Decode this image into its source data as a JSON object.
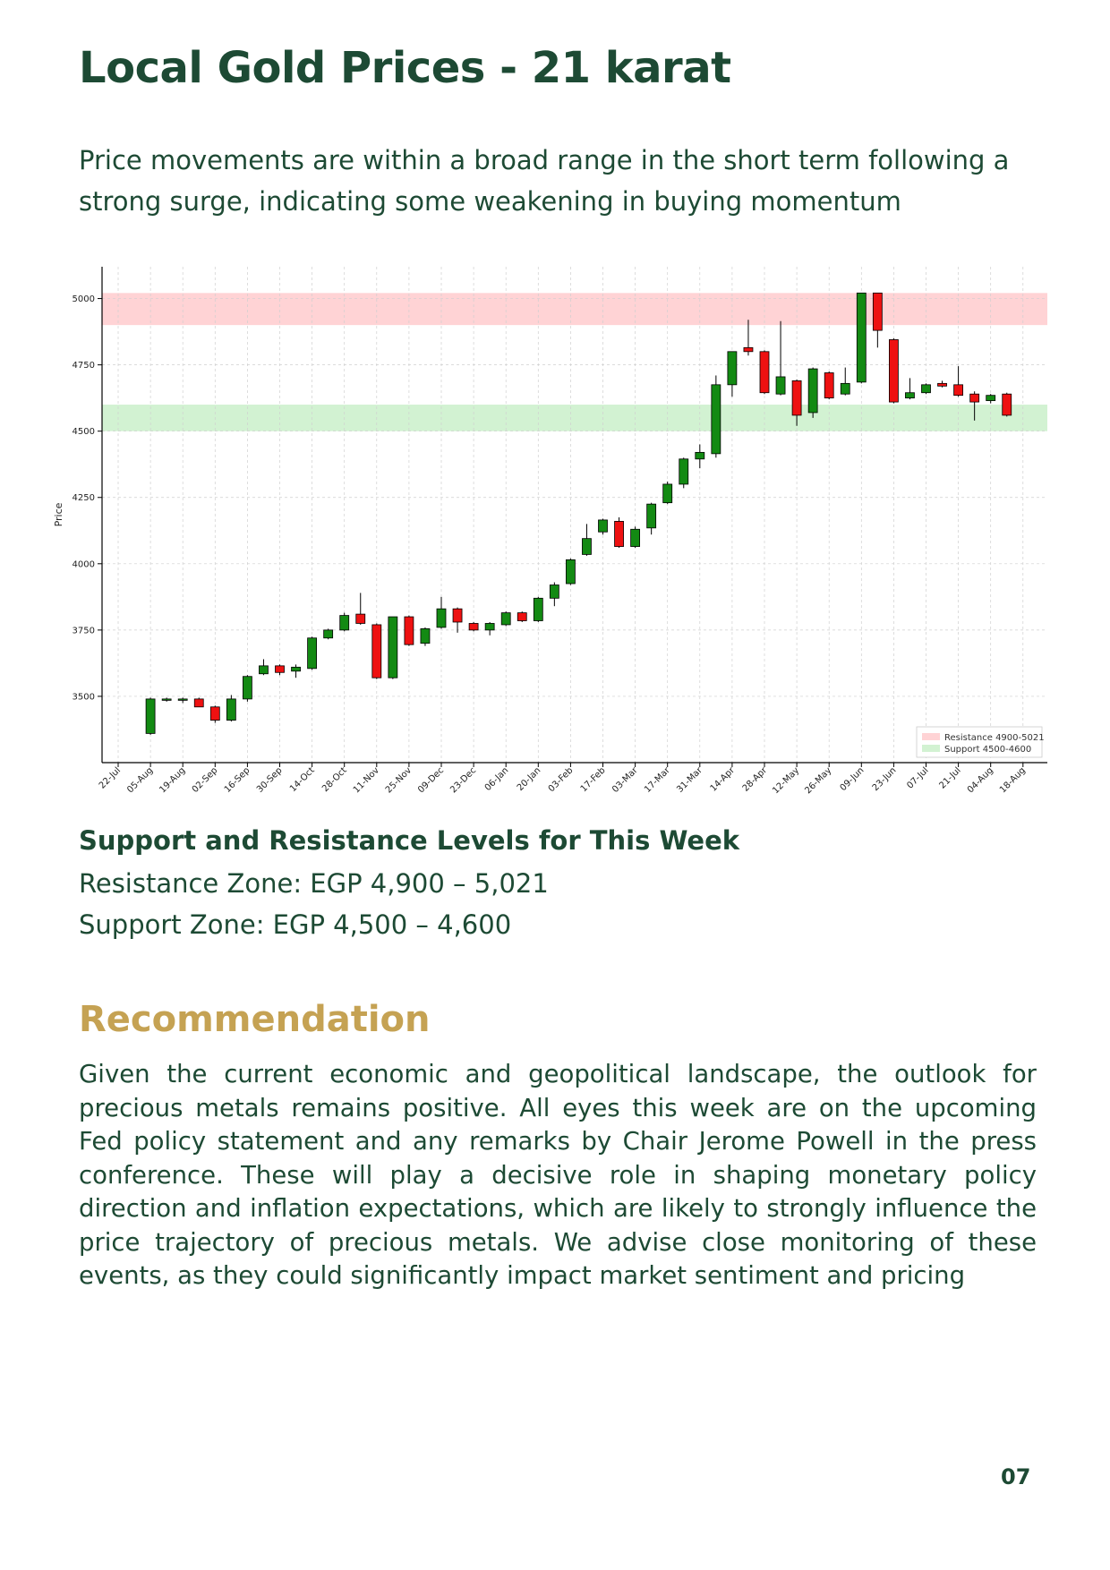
{
  "page": {
    "title": "Local Gold Prices - 21 karat",
    "subtitle": "Price movements are within a broad range in the short term following a strong surge, indicating some weakening in buying momentum",
    "page_number": "07"
  },
  "levels": {
    "heading": "Support and Resistance Levels for This Week",
    "resistance_text": "Resistance Zone: EGP 4,900 – 5,021",
    "support_text": "Support Zone: EGP 4,500 – 4,600"
  },
  "recommendation": {
    "heading": "Recommendation",
    "body": "Given the current economic and geopolitical landscape, the outlook for precious metals remains positive. All eyes this week are on the upcoming Fed policy statement and any remarks by Chair Jerome Powell in the press conference. These will play a decisive role in shaping monetary policy direction and inflation expectations, which are likely to strongly influence the price trajectory of precious metals. We advise close monitoring of these events, as they could significantly impact market sentiment and pricing"
  },
  "colors": {
    "title": "#1d4a34",
    "accent_gold": "#c5a253",
    "up_candle": "#138a13",
    "down_candle": "#ee1111",
    "resistance_band": "#ffd3d5",
    "support_band": "#d2f2d2"
  },
  "chart_data": {
    "type": "candlestick",
    "ylabel": "Price",
    "ylim": [
      3250,
      5120
    ],
    "yticks": [
      3500,
      3750,
      4000,
      4250,
      4500,
      4750,
      5000
    ],
    "xtick_labels": [
      "22-Jul",
      "05-Aug",
      "19-Aug",
      "02-Sep",
      "16-Sep",
      "30-Sep",
      "14-Oct",
      "28-Oct",
      "11-Nov",
      "25-Nov",
      "09-Dec",
      "23-Dec",
      "06-Jan",
      "20-Jan",
      "03-Feb",
      "17-Feb",
      "03-Mar",
      "17-Mar",
      "31-Mar",
      "14-Apr",
      "28-Apr",
      "12-May",
      "26-May",
      "09-Jun",
      "23-Jun",
      "07-Jul",
      "21-Jul",
      "04-Aug",
      "18-Aug"
    ],
    "grid": true,
    "legend_position": "bottom-right",
    "bands": [
      {
        "name": "Resistance 4900-5021",
        "low": 4900,
        "high": 5021
      },
      {
        "name": "Support 4500-4600",
        "low": 4500,
        "high": 4600
      }
    ],
    "candles": [
      {
        "t": 2,
        "o": 3360,
        "h": 3495,
        "l": 3355,
        "c": 3490
      },
      {
        "t": 3,
        "o": 3485,
        "h": 3495,
        "l": 3480,
        "c": 3490
      },
      {
        "t": 4,
        "o": 3485,
        "h": 3495,
        "l": 3475,
        "c": 3490
      },
      {
        "t": 5,
        "o": 3490,
        "h": 3495,
        "l": 3460,
        "c": 3460
      },
      {
        "t": 6,
        "o": 3460,
        "h": 3465,
        "l": 3400,
        "c": 3410
      },
      {
        "t": 7,
        "o": 3410,
        "h": 3505,
        "l": 3405,
        "c": 3490
      },
      {
        "t": 8,
        "o": 3490,
        "h": 3580,
        "l": 3480,
        "c": 3575
      },
      {
        "t": 9,
        "o": 3585,
        "h": 3640,
        "l": 3580,
        "c": 3615
      },
      {
        "t": 10,
        "o": 3615,
        "h": 3620,
        "l": 3580,
        "c": 3590
      },
      {
        "t": 11,
        "o": 3595,
        "h": 3620,
        "l": 3570,
        "c": 3610
      },
      {
        "t": 12,
        "o": 3605,
        "h": 3725,
        "l": 3600,
        "c": 3720
      },
      {
        "t": 13,
        "o": 3720,
        "h": 3755,
        "l": 3715,
        "c": 3750
      },
      {
        "t": 14,
        "o": 3750,
        "h": 3815,
        "l": 3745,
        "c": 3805
      },
      {
        "t": 15,
        "o": 3810,
        "h": 3890,
        "l": 3770,
        "c": 3775
      },
      {
        "t": 16,
        "o": 3770,
        "h": 3775,
        "l": 3565,
        "c": 3570
      },
      {
        "t": 17,
        "o": 3570,
        "h": 3800,
        "l": 3565,
        "c": 3800
      },
      {
        "t": 18,
        "o": 3800,
        "h": 3805,
        "l": 3690,
        "c": 3695
      },
      {
        "t": 19,
        "o": 3700,
        "h": 3760,
        "l": 3690,
        "c": 3755
      },
      {
        "t": 20,
        "o": 3760,
        "h": 3875,
        "l": 3755,
        "c": 3830
      },
      {
        "t": 21,
        "o": 3830,
        "h": 3835,
        "l": 3740,
        "c": 3780
      },
      {
        "t": 22,
        "o": 3775,
        "h": 3780,
        "l": 3745,
        "c": 3750
      },
      {
        "t": 23,
        "o": 3750,
        "h": 3780,
        "l": 3730,
        "c": 3775
      },
      {
        "t": 24,
        "o": 3770,
        "h": 3820,
        "l": 3765,
        "c": 3815
      },
      {
        "t": 25,
        "o": 3815,
        "h": 3820,
        "l": 3780,
        "c": 3785
      },
      {
        "t": 26,
        "o": 3785,
        "h": 3875,
        "l": 3780,
        "c": 3870
      },
      {
        "t": 27,
        "o": 3870,
        "h": 3930,
        "l": 3840,
        "c": 3920
      },
      {
        "t": 28,
        "o": 3925,
        "h": 4020,
        "l": 3920,
        "c": 4015
      },
      {
        "t": 29,
        "o": 4035,
        "h": 4150,
        "l": 4030,
        "c": 4095
      },
      {
        "t": 30,
        "o": 4120,
        "h": 4170,
        "l": 4110,
        "c": 4165
      },
      {
        "t": 31,
        "o": 4160,
        "h": 4175,
        "l": 4060,
        "c": 4065
      },
      {
        "t": 32,
        "o": 4065,
        "h": 4140,
        "l": 4060,
        "c": 4130
      },
      {
        "t": 33,
        "o": 4135,
        "h": 4230,
        "l": 4110,
        "c": 4225
      },
      {
        "t": 34,
        "o": 4230,
        "h": 4310,
        "l": 4225,
        "c": 4300
      },
      {
        "t": 35,
        "o": 4300,
        "h": 4400,
        "l": 4285,
        "c": 4395
      },
      {
        "t": 36,
        "o": 4395,
        "h": 4450,
        "l": 4360,
        "c": 4420
      },
      {
        "t": 37,
        "o": 4415,
        "h": 4710,
        "l": 4400,
        "c": 4675
      },
      {
        "t": 38,
        "o": 4675,
        "h": 4800,
        "l": 4630,
        "c": 4800
      },
      {
        "t": 39,
        "o": 4815,
        "h": 4920,
        "l": 4785,
        "c": 4800
      },
      {
        "t": 40,
        "o": 4800,
        "h": 4805,
        "l": 4640,
        "c": 4645
      },
      {
        "t": 41,
        "o": 4640,
        "h": 4915,
        "l": 4635,
        "c": 4705
      },
      {
        "t": 42,
        "o": 4690,
        "h": 4695,
        "l": 4520,
        "c": 4560
      },
      {
        "t": 43,
        "o": 4570,
        "h": 4740,
        "l": 4550,
        "c": 4735
      },
      {
        "t": 44,
        "o": 4720,
        "h": 4725,
        "l": 4620,
        "c": 4625
      },
      {
        "t": 45,
        "o": 4640,
        "h": 4740,
        "l": 4635,
        "c": 4680
      },
      {
        "t": 46,
        "o": 4685,
        "h": 5021,
        "l": 4680,
        "c": 5021
      },
      {
        "t": 47,
        "o": 5021,
        "h": 5021,
        "l": 4815,
        "c": 4880
      },
      {
        "t": 48,
        "o": 4845,
        "h": 4850,
        "l": 4605,
        "c": 4610
      },
      {
        "t": 49,
        "o": 4625,
        "h": 4700,
        "l": 4620,
        "c": 4645
      },
      {
        "t": 50,
        "o": 4645,
        "h": 4680,
        "l": 4640,
        "c": 4675
      },
      {
        "t": 51,
        "o": 4680,
        "h": 4690,
        "l": 4665,
        "c": 4670
      },
      {
        "t": 52,
        "o": 4675,
        "h": 4745,
        "l": 4630,
        "c": 4635
      },
      {
        "t": 53,
        "o": 4640,
        "h": 4650,
        "l": 4540,
        "c": 4610
      },
      {
        "t": 54,
        "o": 4615,
        "h": 4640,
        "l": 4605,
        "c": 4635
      },
      {
        "t": 55,
        "o": 4640,
        "h": 4645,
        "l": 4555,
        "c": 4560
      }
    ]
  }
}
